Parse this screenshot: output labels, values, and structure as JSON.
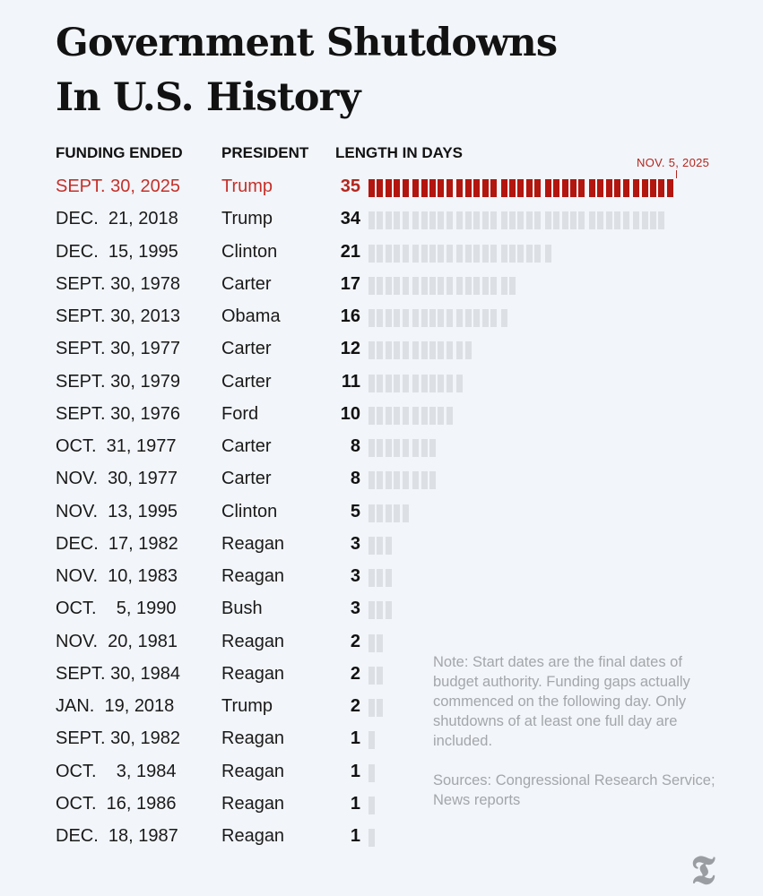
{
  "title": {
    "line1": "Government Shutdowns",
    "line2": "In U.S. History"
  },
  "headers": {
    "funding_ended": "FUNDING ENDED",
    "president": "PRESIDENT",
    "length": "LENGTH IN DAYS"
  },
  "marker_label": "NOV. 5, 2025",
  "chart_data": {
    "type": "bar",
    "title": "Government Shutdowns In U.S. History",
    "xlabel": "LENGTH IN DAYS",
    "ylabel": "",
    "xlim": [
      0,
      35
    ],
    "highlight_color": "#b3150f",
    "default_color": "#dcdfe3",
    "categories": [
      "SEPT. 30, 2025",
      "DEC.  21, 2018",
      "DEC.  15, 1995",
      "SEPT. 30, 1978",
      "SEPT. 30, 2013",
      "SEPT. 30, 1977",
      "SEPT. 30, 1979",
      "SEPT. 30, 1976",
      "OCT.  31, 1977",
      "NOV.  30, 1977",
      "NOV.  13, 1995",
      "DEC.  17, 1982",
      "NOV.  10, 1983",
      "OCT.    5, 1990",
      "NOV.  20, 1981",
      "SEPT. 30, 1984",
      "JAN.  19, 2018",
      "SEPT. 30, 1982",
      "OCT.    3, 1984",
      "OCT.  16, 1986",
      "DEC.  18, 1987"
    ],
    "presidents": [
      "Trump",
      "Trump",
      "Clinton",
      "Carter",
      "Obama",
      "Carter",
      "Carter",
      "Ford",
      "Carter",
      "Carter",
      "Clinton",
      "Reagan",
      "Reagan",
      "Bush",
      "Reagan",
      "Reagan",
      "Trump",
      "Reagan",
      "Reagan",
      "Reagan",
      "Reagan"
    ],
    "values": [
      35,
      34,
      21,
      17,
      16,
      12,
      11,
      10,
      8,
      8,
      5,
      3,
      3,
      3,
      2,
      2,
      2,
      1,
      1,
      1,
      1
    ],
    "highlight_index": 0
  },
  "note": "Note: Start dates are the final dates of budget authority. Funding gaps actually commenced on the following day. Only shutdowns of at least one full day are included.",
  "sources": "Sources: Congressional Research Service; News reports",
  "logo": "T"
}
